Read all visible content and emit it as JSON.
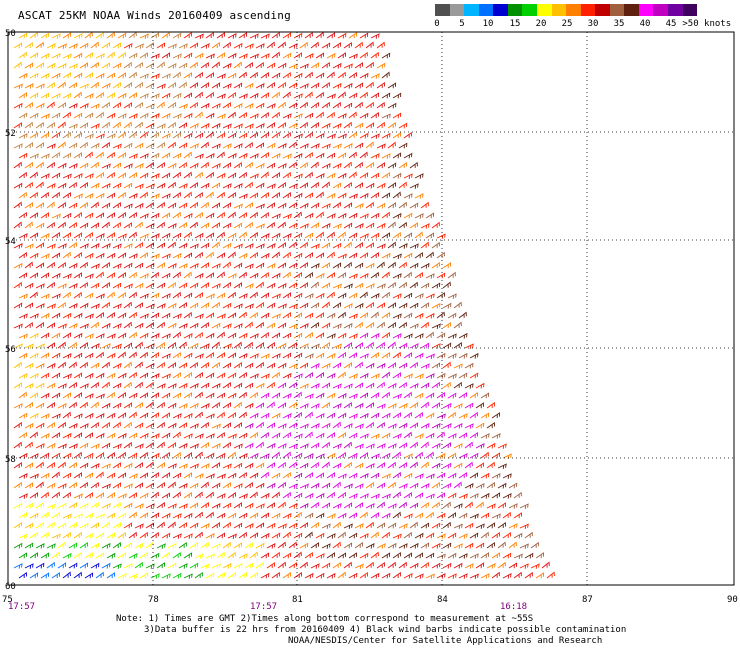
{
  "title": "ASCAT 25KM NOAA Winds 20160409 ascending",
  "legend": {
    "colors": [
      "#505050",
      "#9a9a9a",
      "#00b4ff",
      "#0070ff",
      "#0000d0",
      "#009000",
      "#00d000",
      "#ffff00",
      "#ffc000",
      "#ff8000",
      "#ff2000",
      "#c00000",
      "#a06040",
      "#602010",
      "#ff00ff",
      "#c000c0",
      "#7000a0",
      "#400060"
    ],
    "labels": [
      "0",
      "5",
      "10",
      "15",
      "20",
      "25",
      "30",
      "35",
      "40",
      "45",
      ">50 knots"
    ]
  },
  "map": {
    "lon_labels": [
      "75",
      "78",
      "81",
      "84",
      "87",
      "90"
    ],
    "lat_labels": [
      "50",
      "52",
      "54",
      "56",
      "58",
      "60"
    ],
    "times": [
      "17:57",
      "17:57",
      "16:18"
    ]
  },
  "notes": {
    "line1": "Note: 1) Times are GMT 2)Times along bottom correspond to measurement at ~55S",
    "line2": "3)Data buffer is 22 hrs from 20160409 4) Black wind barbs indicate possible contamination",
    "line3": "NOAA/NESDIS/Center for Satellite Applications and Research"
  }
}
